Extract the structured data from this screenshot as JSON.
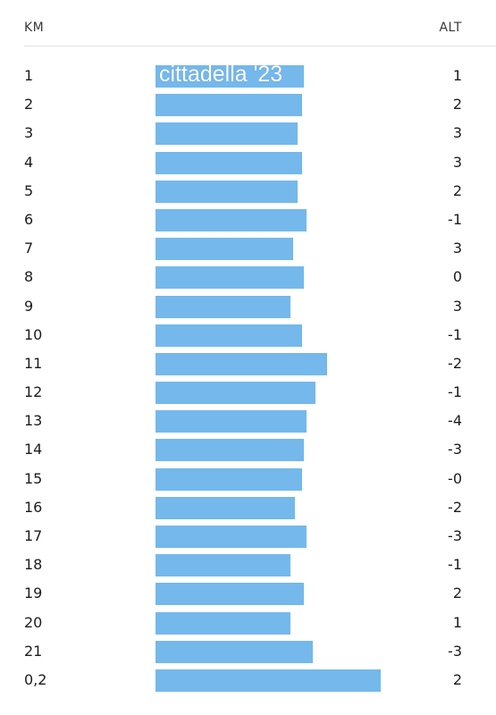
{
  "header": {
    "km_label": "KM",
    "alt_label": "ALT"
  },
  "overlay_text": "cittadella '23",
  "colors": {
    "bar": "#74b8ec",
    "divider": "#e2e2e6",
    "text": "#1c1c1e"
  },
  "chart_data": {
    "type": "bar",
    "orientation": "horizontal",
    "categories": [
      "1",
      "2",
      "3",
      "4",
      "5",
      "6",
      "7",
      "8",
      "9",
      "10",
      "11",
      "12",
      "13",
      "14",
      "15",
      "16",
      "17",
      "18",
      "19",
      "20",
      "21",
      "0,2"
    ],
    "series": [
      {
        "values": [
          166,
          164,
          159,
          164,
          159,
          169,
          154,
          166,
          151,
          164,
          192,
          179,
          169,
          166,
          164,
          156,
          169,
          151,
          166,
          151,
          176,
          252
        ]
      }
    ],
    "alt_values": [
      "1",
      "2",
      "3",
      "3",
      "2",
      "-1",
      "3",
      "0",
      "3",
      "-1",
      "-2",
      "-1",
      "-4",
      "-3",
      "-0",
      "-2",
      "-3",
      "-1",
      "2",
      "1",
      "-3",
      "2"
    ]
  }
}
